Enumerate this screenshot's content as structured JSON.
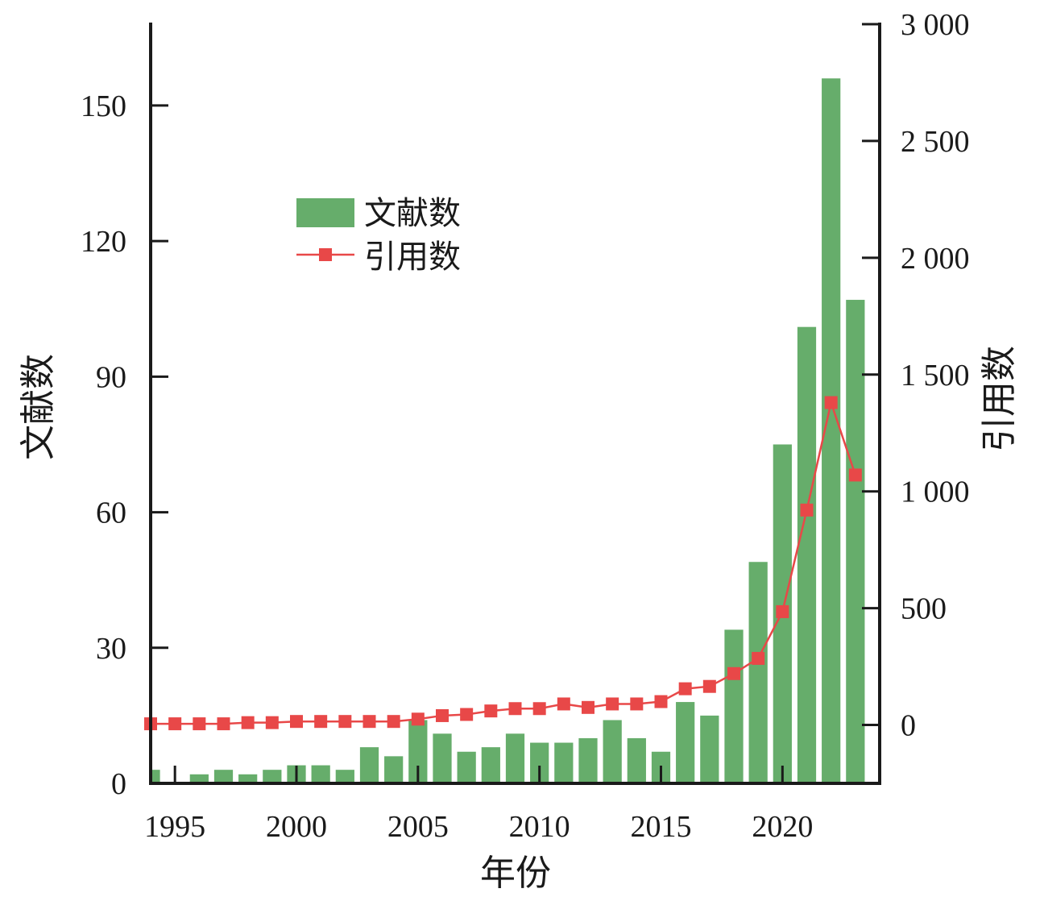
{
  "chart_data": {
    "type": "bar",
    "x": [
      1994,
      1995,
      1996,
      1997,
      1998,
      1999,
      2000,
      2001,
      2002,
      2003,
      2004,
      2005,
      2006,
      2007,
      2008,
      2009,
      2010,
      2011,
      2012,
      2013,
      2014,
      2015,
      2016,
      2017,
      2018,
      2019,
      2020,
      2021,
      2022,
      2023
    ],
    "xlabel": "年份",
    "xticks": [
      1995,
      2000,
      2005,
      2010,
      2015,
      2020
    ],
    "xtick_labels": [
      "1995",
      "2000",
      "2005",
      "2010",
      "2015",
      "2020"
    ],
    "xlim": [
      1994,
      2024
    ],
    "series": [
      {
        "name": "文献数",
        "type": "bar",
        "axis": "left",
        "color": "#66ad6b",
        "values": [
          3,
          0,
          2,
          3,
          2,
          3,
          4,
          4,
          3,
          8,
          6,
          14,
          11,
          7,
          8,
          11,
          9,
          9,
          10,
          14,
          10,
          7,
          18,
          15,
          34,
          49,
          75,
          101,
          156,
          107
        ]
      },
      {
        "name": "引用数",
        "type": "line",
        "axis": "right",
        "color": "#e84848",
        "marker": "square",
        "values": [
          5,
          5,
          5,
          5,
          10,
          10,
          15,
          15,
          15,
          15,
          15,
          25,
          40,
          45,
          60,
          70,
          70,
          90,
          75,
          90,
          90,
          100,
          155,
          165,
          220,
          285,
          485,
          920,
          1380,
          1070
        ]
      }
    ],
    "left_axis": {
      "label": "文献数",
      "ylim": [
        0,
        168
      ],
      "ticks": [
        0,
        30,
        60,
        90,
        120,
        150
      ],
      "tick_labels": [
        "0",
        "30",
        "60",
        "90",
        "120",
        "150"
      ]
    },
    "right_axis": {
      "label": "引用数",
      "ylim": [
        -250,
        3000
      ],
      "ticks": [
        0,
        500,
        1000,
        1500,
        2000,
        2500,
        3000
      ],
      "tick_labels": [
        "0",
        "500",
        "1 000",
        "1 500",
        "2 000",
        "2 500",
        "3 000"
      ]
    },
    "legend": {
      "placement": "upper-left-center",
      "entries": [
        "文献数",
        "引用数"
      ]
    },
    "grid": false
  }
}
